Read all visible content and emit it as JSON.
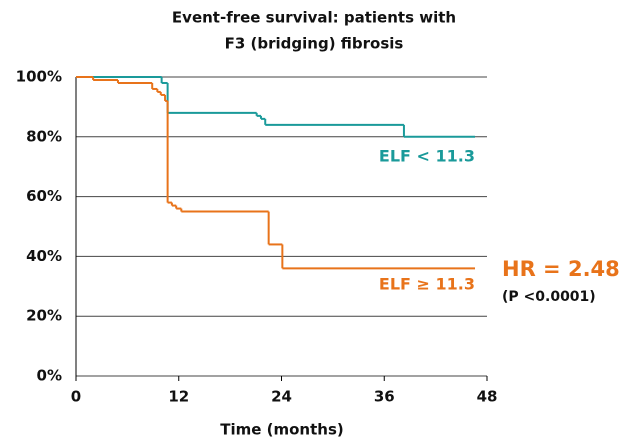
{
  "chart_data": {
    "type": "step",
    "title": [
      "Event-free survival: patients with",
      "F3 (bridging) fibrosis"
    ],
    "x_label": "Time (months)",
    "xlim": [
      0,
      48
    ],
    "xticks": [
      0,
      12,
      24,
      36,
      48
    ],
    "ylim": [
      0,
      100
    ],
    "yticks": [
      {
        "value": 0,
        "label": "0%"
      },
      {
        "value": 20,
        "label": "20%"
      },
      {
        "value": 40,
        "label": "40%"
      },
      {
        "value": 60,
        "label": "60%"
      },
      {
        "value": 80,
        "label": "80%"
      },
      {
        "value": 100,
        "label": "100%"
      }
    ],
    "grid": true,
    "series": [
      {
        "name": "ELF < 11.3",
        "color": "#1a9a9a",
        "x": [
          0,
          10.0,
          10.7,
          21.1,
          21.6,
          22.1,
          38.3,
          46.6
        ],
        "values": [
          100,
          98,
          88,
          87,
          86,
          84,
          80,
          80
        ]
      },
      {
        "name": "ELF ≥ 11.3",
        "color": "#e8731a",
        "x": [
          0,
          2,
          4.9,
          8.9,
          9.5,
          9.9,
          10.4,
          10.7,
          11.2,
          11.7,
          12.3,
          22.5,
          24.1,
          46.6
        ],
        "values": [
          100,
          99,
          98,
          96,
          95,
          94,
          92,
          58,
          57,
          56,
          55,
          44,
          36,
          36
        ]
      }
    ],
    "annotations": [
      {
        "text": "HR = 2.48",
        "color": "#e8731a"
      },
      {
        "text": "(P <0.0001)",
        "color": "#111111"
      }
    ]
  }
}
